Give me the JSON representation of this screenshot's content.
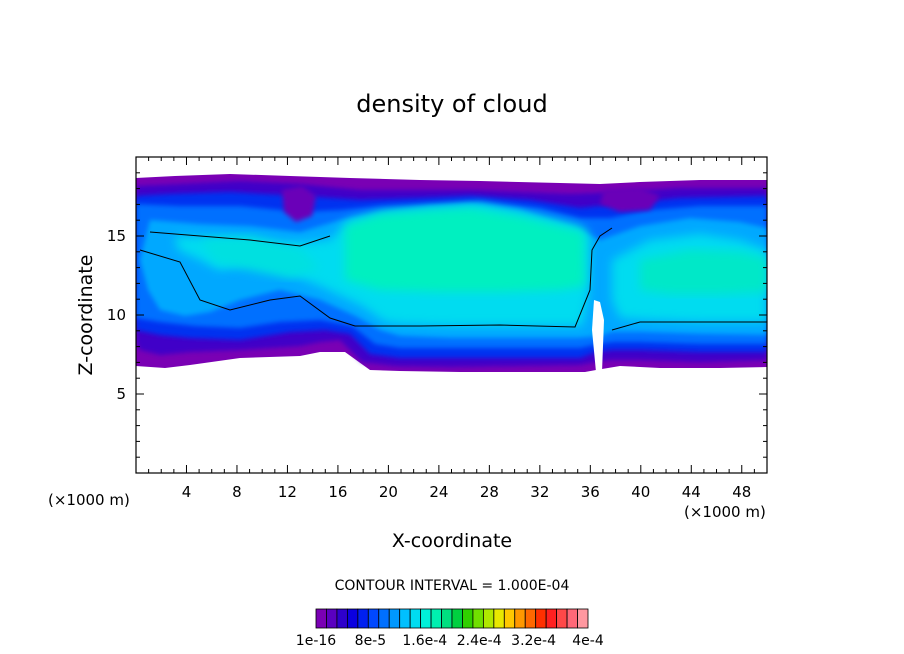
{
  "chart_data": {
    "type": "heatmap",
    "title": "density of cloud",
    "xlabel": "X-coordinate",
    "ylabel": "Z-coordinate",
    "x_unit_left": "(×1000 m)",
    "x_unit_right": "(×1000 m)",
    "xlim": [
      0,
      50
    ],
    "ylim": [
      0,
      20
    ],
    "x_ticks": [
      4,
      8,
      12,
      16,
      20,
      24,
      28,
      32,
      36,
      40,
      44,
      48
    ],
    "y_ticks": [
      5,
      10,
      15
    ],
    "contour_interval_text": "CONTOUR INTERVAL = 1.000E-04",
    "colorbar": {
      "colors": [
        "#7a00b4",
        "#5a00c0",
        "#2e00cc",
        "#0a00e0",
        "#0020f0",
        "#0048ff",
        "#0070ff",
        "#0098ff",
        "#00c0ff",
        "#00dcf0",
        "#00f0d8",
        "#00f0b0",
        "#00e080",
        "#00d040",
        "#30d000",
        "#70e000",
        "#b0e800",
        "#e8e800",
        "#ffc800",
        "#ff9800",
        "#ff6800",
        "#ff3000",
        "#ff2020",
        "#ff4848",
        "#ff6878",
        "#ff98a0"
      ],
      "tick_labels": [
        "1e-16",
        "8e-5",
        "1.6e-4",
        "2.4e-4",
        "3.2e-4",
        "4e-4"
      ]
    },
    "cloud_base_km": 7.0,
    "cloud_top_km": 18.5,
    "cores": [
      {
        "x_range": [
          16,
          35
        ],
        "z_range": [
          12,
          17
        ],
        "level": "high"
      },
      {
        "x_range": [
          40,
          50
        ],
        "z_range": [
          11,
          14
        ],
        "level": "moderate"
      },
      {
        "x_range": [
          3,
          13
        ],
        "z_range": [
          10,
          15
        ],
        "level": "moderate"
      }
    ]
  }
}
